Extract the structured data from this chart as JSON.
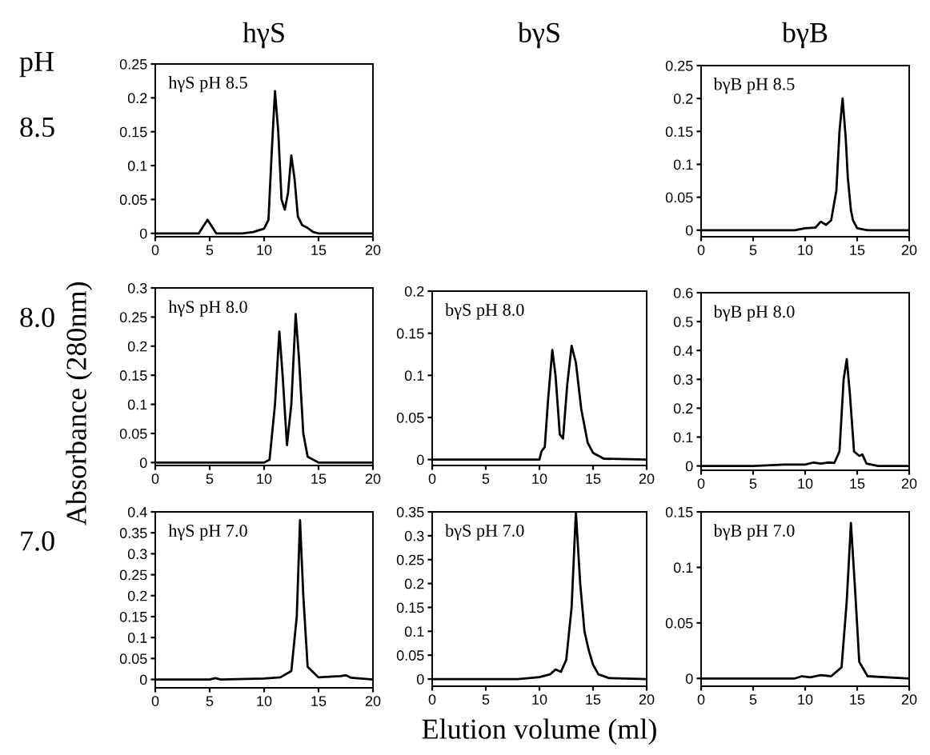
{
  "chart_data": [
    {
      "type": "line",
      "title": "hγS",
      "annotations": [
        "hγS pH 8.5",
        "pH",
        "8.5"
      ],
      "x": [
        0,
        2,
        4,
        4.4,
        4.8,
        5.2,
        5.6,
        6,
        8,
        9,
        10,
        10.4,
        10.7,
        11.0,
        11.3,
        11.6,
        11.9,
        12.2,
        12.5,
        12.8,
        13.1,
        13.5,
        14,
        14.5,
        15,
        17,
        20
      ],
      "series": [
        {
          "color": "#000000",
          "values": [
            0,
            0,
            0,
            0.01,
            0.02,
            0.01,
            0,
            0,
            0,
            0.002,
            0.007,
            0.02,
            0.12,
            0.21,
            0.15,
            0.05,
            0.035,
            0.06,
            0.115,
            0.08,
            0.025,
            0.012,
            0.008,
            0.002,
            0,
            0,
            0
          ]
        }
      ],
      "xlim": [
        0,
        20
      ],
      "ylim": [
        -0.005,
        0.25
      ],
      "xticks": [
        0,
        5,
        10,
        15,
        20
      ],
      "yticks": [
        0,
        0.05,
        0.1,
        0.15,
        0.2,
        0.25
      ]
    },
    {
      "type": "line",
      "title": "bγB",
      "annotations": [
        "bγB pH 8.5"
      ],
      "x": [
        0,
        5,
        9,
        10,
        11,
        11.5,
        12,
        12.5,
        13,
        13.3,
        13.6,
        13.9,
        14.1,
        14.4,
        14.6,
        15,
        16,
        20
      ],
      "series": [
        {
          "color": "#000000",
          "values": [
            0,
            0,
            0,
            0.003,
            0.004,
            0.013,
            0.008,
            0.015,
            0.06,
            0.15,
            0.2,
            0.14,
            0.08,
            0.03,
            0.015,
            0.003,
            0,
            0
          ]
        }
      ],
      "xlim": [
        0,
        20
      ],
      "ylim": [
        -0.01,
        0.25
      ],
      "xticks": [
        0,
        5,
        10,
        15,
        20
      ],
      "yticks": [
        0,
        0.05,
        0.1,
        0.15,
        0.2,
        0.25
      ]
    },
    {
      "type": "line",
      "ylabel": "Absorbance (280nm)",
      "annotations": [
        "hγS pH 8.0",
        "8.0"
      ],
      "x": [
        0,
        5,
        10,
        10.5,
        11,
        11.4,
        11.7,
        12.1,
        12.5,
        12.9,
        13.2,
        13.6,
        14,
        15,
        20
      ],
      "series": [
        {
          "color": "#000000",
          "values": [
            0,
            0,
            0,
            0.005,
            0.1,
            0.225,
            0.15,
            0.03,
            0.1,
            0.255,
            0.18,
            0.05,
            0.01,
            0,
            0
          ]
        }
      ],
      "xlim": [
        0,
        20
      ],
      "ylim": [
        -0.005,
        0.3
      ],
      "xticks": [
        0,
        5,
        10,
        15,
        20
      ],
      "yticks": [
        0,
        0.05,
        0.1,
        0.15,
        0.2,
        0.25,
        0.3
      ]
    },
    {
      "type": "line",
      "title": "bγS",
      "annotations": [
        "bγS pH 8.0"
      ],
      "x": [
        0,
        5,
        10,
        10.2,
        10.5,
        10.8,
        11.2,
        11.5,
        11.9,
        12.2,
        12.6,
        13,
        13.4,
        13.9,
        14.5,
        15,
        16,
        20
      ],
      "series": [
        {
          "color": "#000000",
          "values": [
            0,
            0,
            0,
            0.01,
            0.015,
            0.07,
            0.13,
            0.1,
            0.03,
            0.025,
            0.09,
            0.135,
            0.115,
            0.06,
            0.02,
            0.008,
            0.001,
            0
          ]
        }
      ],
      "xlim": [
        0,
        20
      ],
      "ylim": [
        -0.007,
        0.2
      ],
      "xticks": [
        0,
        5,
        10,
        15,
        20
      ],
      "yticks": [
        0,
        0.05,
        0.1,
        0.15,
        0.2
      ]
    },
    {
      "type": "line",
      "annotations": [
        "bγB pH 8.0"
      ],
      "x": [
        0,
        5,
        8,
        10,
        10.8,
        11.5,
        12.2,
        12.8,
        13.3,
        13.7,
        14,
        14.3,
        14.7,
        15.2,
        15.5,
        15.9,
        17,
        20
      ],
      "series": [
        {
          "color": "#000000",
          "values": [
            0,
            0,
            0.005,
            0.005,
            0.012,
            0.008,
            0.012,
            0.01,
            0.05,
            0.3,
            0.37,
            0.25,
            0.05,
            0.035,
            0.04,
            0.008,
            0,
            0
          ]
        }
      ],
      "xlim": [
        0,
        20
      ],
      "ylim": [
        -0.015,
        0.6
      ],
      "xticks": [
        0,
        5,
        10,
        15,
        20
      ],
      "yticks": [
        0,
        0.1,
        0.2,
        0.3,
        0.4,
        0.5,
        0.6
      ]
    },
    {
      "type": "line",
      "annotations": [
        "hγS pH 7.0",
        "7.0"
      ],
      "x": [
        0,
        5,
        5.5,
        6,
        10,
        11.5,
        12.5,
        13,
        13.3,
        13.6,
        14,
        15,
        17,
        17.5,
        18,
        20
      ],
      "series": [
        {
          "color": "#000000",
          "values": [
            0,
            0,
            0.003,
            0,
            0.002,
            0.005,
            0.02,
            0.15,
            0.38,
            0.2,
            0.03,
            0.005,
            0.008,
            0.01,
            0.004,
            0
          ]
        }
      ],
      "xlim": [
        0,
        20
      ],
      "ylim": [
        -0.02,
        0.4
      ],
      "xticks": [
        0,
        5,
        10,
        15,
        20
      ],
      "yticks": [
        0,
        0.05,
        0.1,
        0.15,
        0.2,
        0.25,
        0.3,
        0.35,
        0.4
      ]
    },
    {
      "type": "line",
      "xlabel": "Elution volume (ml)",
      "annotations": [
        "bγS pH 7.0"
      ],
      "x": [
        0,
        8,
        10,
        11,
        11.5,
        12,
        12.5,
        13,
        13.4,
        13.8,
        14.2,
        14.6,
        15,
        15.5,
        16.5,
        20
      ],
      "series": [
        {
          "color": "#000000",
          "values": [
            0,
            0,
            0.004,
            0.01,
            0.02,
            0.015,
            0.04,
            0.15,
            0.35,
            0.2,
            0.1,
            0.06,
            0.03,
            0.01,
            0.002,
            0
          ]
        }
      ],
      "xlim": [
        0,
        20
      ],
      "ylim": [
        -0.015,
        0.35
      ],
      "xticks": [
        0,
        5,
        10,
        15,
        20
      ],
      "yticks": [
        0,
        0.05,
        0.1,
        0.15,
        0.2,
        0.25,
        0.3,
        0.35
      ]
    },
    {
      "type": "line",
      "annotations": [
        "bγB pH 7.0"
      ],
      "x": [
        0,
        9,
        9.7,
        10.5,
        11.5,
        12.5,
        13.5,
        14,
        14.4,
        14.8,
        15.2,
        16,
        20
      ],
      "series": [
        {
          "color": "#000000",
          "values": [
            0,
            0,
            0.002,
            0.001,
            0.003,
            0.002,
            0.01,
            0.07,
            0.14,
            0.08,
            0.015,
            0.002,
            0
          ]
        }
      ],
      "xlim": [
        0,
        20
      ],
      "ylim": [
        -0.007,
        0.15
      ],
      "xticks": [
        0,
        5,
        10,
        15,
        20
      ],
      "yticks": [
        0,
        0.05,
        0.1,
        0.15
      ]
    }
  ]
}
